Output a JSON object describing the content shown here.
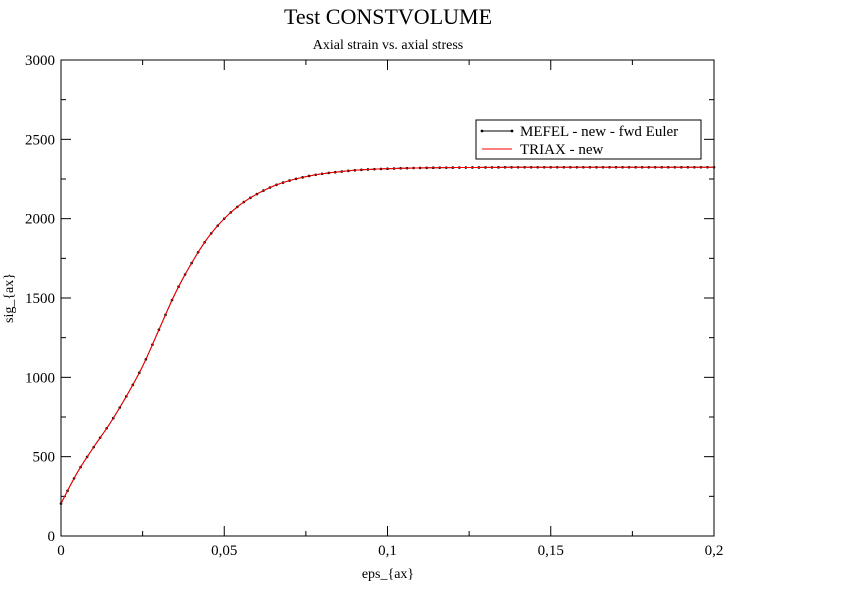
{
  "chart_data": {
    "type": "line",
    "title": "Test CONSTVOLUME",
    "subtitle": "Axial strain vs. axial stress",
    "xlabel": "eps_{ax}",
    "ylabel": "sig_{ax}",
    "xlim": [
      0,
      0.2
    ],
    "ylim": [
      0,
      3000
    ],
    "xticks": [
      0,
      0.05,
      0.1,
      0.15,
      0.2
    ],
    "xtick_labels": [
      "0",
      "0,05",
      "0,1",
      "0,15",
      "0,2"
    ],
    "yticks": [
      0,
      500,
      1000,
      1500,
      2000,
      2500,
      3000
    ],
    "ytick_labels": [
      "0",
      "500",
      "1000",
      "1500",
      "2000",
      "2500",
      "3000"
    ],
    "grid": false,
    "legend_position": "top-right",
    "x": [
      0.0,
      0.005,
      0.01,
      0.015,
      0.02,
      0.025,
      0.03,
      0.035,
      0.04,
      0.045,
      0.05,
      0.055,
      0.06,
      0.065,
      0.07,
      0.075,
      0.08,
      0.085,
      0.09,
      0.095,
      0.1,
      0.11,
      0.12,
      0.13,
      0.14,
      0.15,
      0.16,
      0.17,
      0.18,
      0.19,
      0.2
    ],
    "series": [
      {
        "name": "MEFEL - new - fwd Euler",
        "color": "#000000",
        "marker": "dot",
        "values": [
          205,
          400,
          560,
          710,
          880,
          1070,
          1300,
          1530,
          1720,
          1880,
          2000,
          2090,
          2155,
          2205,
          2240,
          2265,
          2283,
          2295,
          2305,
          2311,
          2315,
          2320,
          2322,
          2323,
          2324,
          2324,
          2324,
          2324,
          2324,
          2324,
          2324
        ]
      },
      {
        "name": "TRIAX - new",
        "color": "#ff0000",
        "marker": "none",
        "values": [
          205,
          400,
          560,
          710,
          880,
          1070,
          1300,
          1530,
          1720,
          1880,
          2000,
          2090,
          2155,
          2205,
          2240,
          2265,
          2283,
          2295,
          2305,
          2311,
          2315,
          2320,
          2322,
          2323,
          2324,
          2324,
          2324,
          2324,
          2324,
          2324,
          2324
        ]
      }
    ]
  }
}
